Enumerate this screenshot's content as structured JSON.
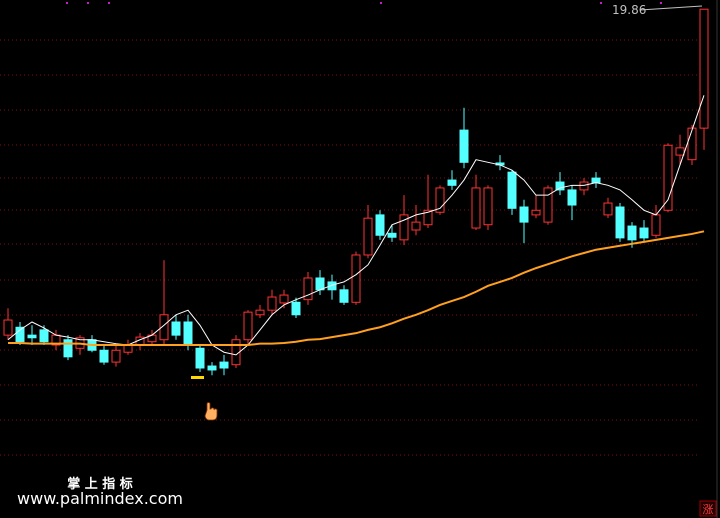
{
  "chart_data": {
    "type": "candlestick",
    "ylim": [
      13,
      20
    ],
    "up_color": "#ff3232",
    "down_color": "#54ffff",
    "ohlc": {
      "open": [
        14.9,
        15.02,
        14.9,
        14.98,
        14.75,
        14.83,
        14.7,
        14.83,
        14.67,
        14.49,
        14.64,
        14.75,
        14.8,
        14.83,
        15.1,
        15.1,
        14.7,
        14.43,
        14.49,
        14.45,
        14.83,
        15.21,
        15.28,
        15.39,
        15.4,
        15.44,
        15.77,
        15.71,
        15.59,
        15.4,
        16.12,
        16.73,
        16.45,
        16.35,
        16.5,
        16.58,
        16.77,
        17.26,
        18.02,
        16.53,
        16.58,
        17.52,
        17.38,
        16.85,
        16.73,
        16.62,
        17.23,
        17.11,
        17.11,
        17.29,
        16.73,
        16.85,
        16.56,
        16.53,
        16.42,
        16.8,
        17.64,
        17.57,
        18.05
      ],
      "high": [
        15.31,
        15.1,
        15.05,
        15.05,
        14.98,
        14.9,
        14.9,
        14.9,
        14.75,
        14.75,
        14.83,
        14.93,
        14.98,
        16.04,
        15.21,
        15.21,
        14.75,
        14.49,
        14.6,
        14.9,
        15.28,
        15.36,
        15.59,
        15.59,
        15.47,
        15.86,
        15.89,
        15.82,
        15.66,
        16.17,
        16.88,
        16.8,
        16.58,
        17.03,
        16.88,
        17.34,
        17.18,
        17.41,
        18.36,
        17.34,
        17.18,
        17.64,
        17.41,
        16.96,
        17.03,
        17.18,
        17.38,
        17.18,
        17.29,
        17.38,
        16.99,
        16.91,
        16.62,
        16.65,
        16.88,
        17.82,
        17.95,
        18.1,
        19.86
      ],
      "low": [
        14.83,
        14.75,
        14.75,
        14.75,
        14.67,
        14.52,
        14.6,
        14.64,
        14.45,
        14.42,
        14.6,
        14.67,
        14.75,
        14.75,
        14.83,
        14.67,
        14.34,
        14.29,
        14.29,
        14.4,
        14.75,
        15.16,
        15.21,
        15.31,
        15.16,
        15.36,
        15.51,
        15.44,
        15.36,
        15.36,
        16.07,
        16.35,
        16.32,
        16.27,
        16.42,
        16.53,
        16.73,
        17.11,
        17.44,
        16.5,
        16.5,
        17.41,
        16.73,
        16.3,
        16.68,
        16.58,
        17.03,
        16.65,
        17.03,
        17.14,
        16.68,
        16.32,
        16.23,
        16.32,
        16.38,
        16.77,
        17.49,
        17.49,
        17.72
      ],
      "close": [
        15.13,
        14.8,
        14.86,
        14.8,
        14.9,
        14.57,
        14.86,
        14.67,
        14.49,
        14.67,
        14.75,
        14.87,
        14.9,
        15.21,
        14.9,
        14.75,
        14.4,
        14.37,
        14.4,
        14.83,
        15.25,
        15.28,
        15.48,
        15.51,
        15.21,
        15.77,
        15.59,
        15.59,
        15.4,
        16.12,
        16.68,
        16.42,
        16.39,
        16.73,
        16.62,
        16.8,
        17.14,
        17.18,
        17.53,
        17.14,
        17.14,
        17.49,
        16.83,
        16.62,
        16.8,
        17.14,
        17.11,
        16.88,
        17.23,
        17.22,
        16.91,
        16.38,
        16.35,
        16.38,
        16.73,
        17.79,
        17.75,
        18.05,
        19.86
      ]
    },
    "lines": [
      {
        "color": "#ffffff",
        "values": [
          14.83,
          14.98,
          15.1,
          15.01,
          14.9,
          14.87,
          14.83,
          14.83,
          14.8,
          14.77,
          14.75,
          14.83,
          14.9,
          15.05,
          15.21,
          15.28,
          15.05,
          14.75,
          14.64,
          14.6,
          14.75,
          14.98,
          15.21,
          15.36,
          15.44,
          15.51,
          15.59,
          15.66,
          15.71,
          15.82,
          15.97,
          16.27,
          16.58,
          16.65,
          16.73,
          16.77,
          16.83,
          17.03,
          17.26,
          17.57,
          17.53,
          17.49,
          17.41,
          17.26,
          17.03,
          17.03,
          17.14,
          17.18,
          17.18,
          17.22,
          17.18,
          17.11,
          16.96,
          16.8,
          16.73,
          16.96,
          17.49,
          18.02,
          18.55
        ]
      },
      {
        "color": "#ffa020",
        "values": [
          14.78,
          14.78,
          14.77,
          14.77,
          14.77,
          14.77,
          14.77,
          14.75,
          14.75,
          14.75,
          14.75,
          14.75,
          14.75,
          14.75,
          14.75,
          14.75,
          14.75,
          14.75,
          14.75,
          14.75,
          14.75,
          14.77,
          14.77,
          14.78,
          14.8,
          14.83,
          14.84,
          14.87,
          14.9,
          14.93,
          14.98,
          15.02,
          15.08,
          15.15,
          15.21,
          15.28,
          15.36,
          15.42,
          15.48,
          15.56,
          15.65,
          15.71,
          15.77,
          15.85,
          15.92,
          15.98,
          16.04,
          16.1,
          16.15,
          16.2,
          16.23,
          16.26,
          16.29,
          16.32,
          16.35,
          16.38,
          16.41,
          16.44,
          16.48
        ]
      }
    ],
    "annotation": "19.86"
  },
  "watermark": {
    "title": "掌 上 指 标",
    "url": "www.palmindex.com"
  },
  "badge": "涨"
}
